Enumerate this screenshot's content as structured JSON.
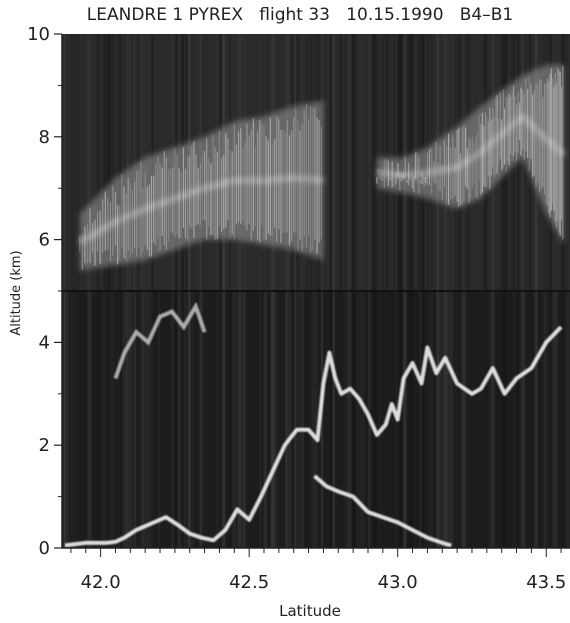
{
  "chart_data": {
    "type": "heatmap",
    "title": "LEANDRE 1 PYREX   flight 33   10.15.1990   B4–B1",
    "xlabel": "Latitude",
    "ylabel": "Altitude (km)",
    "xlim": [
      41.87,
      43.58
    ],
    "ylim": [
      0,
      10
    ],
    "x_ticks": [
      "42.0",
      "42.5",
      "43.0",
      "43.5"
    ],
    "y_ticks": [
      "0",
      "2",
      "4",
      "6",
      "8",
      "10"
    ],
    "colors": {
      "background": "#2a2a2a",
      "signal": "#f2f2f2",
      "axes": "#222222"
    },
    "layers": [
      {
        "name": "upper cirrus",
        "lat": [
          41.93,
          42.05,
          42.15,
          42.25,
          42.35,
          42.45,
          42.55,
          42.65,
          42.75
        ],
        "base": [
          5.4,
          5.5,
          5.6,
          5.8,
          6.0,
          6.0,
          5.9,
          5.8,
          5.6
        ],
        "top": [
          6.5,
          7.2,
          7.6,
          7.8,
          8.0,
          8.3,
          8.4,
          8.6,
          8.7
        ]
      },
      {
        "name": "upper right cirrus",
        "lat": [
          42.93,
          43.02,
          43.1,
          43.2,
          43.28,
          43.35,
          43.42,
          43.5,
          43.56
        ],
        "base": [
          7.0,
          6.9,
          6.8,
          6.6,
          6.8,
          7.2,
          7.6,
          6.5,
          5.9
        ],
        "top": [
          7.6,
          7.6,
          7.8,
          8.2,
          8.6,
          8.9,
          9.2,
          9.4,
          9.4
        ]
      }
    ],
    "boundary_layer_top": [
      [
        41.88,
        0.05
      ],
      [
        41.95,
        0.1
      ],
      [
        42.02,
        0.1
      ],
      [
        42.05,
        0.12
      ],
      [
        42.08,
        0.2
      ],
      [
        42.12,
        0.35
      ],
      [
        42.18,
        0.5
      ],
      [
        42.22,
        0.6
      ],
      [
        42.26,
        0.45
      ],
      [
        42.3,
        0.28
      ],
      [
        42.34,
        0.2
      ],
      [
        42.38,
        0.15
      ],
      [
        42.42,
        0.35
      ],
      [
        42.46,
        0.75
      ],
      [
        42.5,
        0.55
      ],
      [
        42.54,
        1.0
      ],
      [
        42.58,
        1.5
      ],
      [
        42.62,
        2.0
      ],
      [
        42.66,
        2.3
      ],
      [
        42.7,
        2.3
      ],
      [
        42.73,
        2.1
      ],
      [
        42.75,
        3.2
      ],
      [
        42.77,
        3.8
      ],
      [
        42.79,
        3.3
      ],
      [
        42.81,
        3.0
      ],
      [
        42.84,
        3.1
      ],
      [
        42.87,
        2.9
      ],
      [
        42.9,
        2.6
      ],
      [
        42.93,
        2.2
      ],
      [
        42.96,
        2.4
      ],
      [
        42.98,
        2.8
      ],
      [
        43.0,
        2.5
      ],
      [
        43.02,
        3.3
      ],
      [
        43.05,
        3.6
      ],
      [
        43.08,
        3.2
      ],
      [
        43.1,
        3.9
      ],
      [
        43.13,
        3.4
      ],
      [
        43.16,
        3.7
      ],
      [
        43.2,
        3.2
      ],
      [
        43.25,
        3.0
      ],
      [
        43.28,
        3.1
      ],
      [
        43.32,
        3.5
      ],
      [
        43.36,
        3.0
      ],
      [
        43.4,
        3.3
      ],
      [
        43.45,
        3.5
      ],
      [
        43.5,
        4.0
      ],
      [
        43.55,
        4.3
      ]
    ],
    "aerosol_layer_top": [
      [
        42.72,
        1.4
      ],
      [
        42.76,
        1.2
      ],
      [
        42.8,
        1.1
      ],
      [
        42.85,
        1.0
      ],
      [
        42.9,
        0.7
      ],
      [
        42.95,
        0.6
      ],
      [
        43.0,
        0.5
      ],
      [
        43.05,
        0.35
      ],
      [
        43.1,
        0.2
      ],
      [
        43.15,
        0.1
      ],
      [
        43.18,
        0.05
      ]
    ],
    "mid_layer": [
      [
        42.05,
        3.3
      ],
      [
        42.08,
        3.8
      ],
      [
        42.12,
        4.2
      ],
      [
        42.16,
        4.0
      ],
      [
        42.2,
        4.5
      ],
      [
        42.24,
        4.6
      ],
      [
        42.28,
        4.3
      ],
      [
        42.32,
        4.7
      ],
      [
        42.35,
        4.2
      ]
    ]
  }
}
